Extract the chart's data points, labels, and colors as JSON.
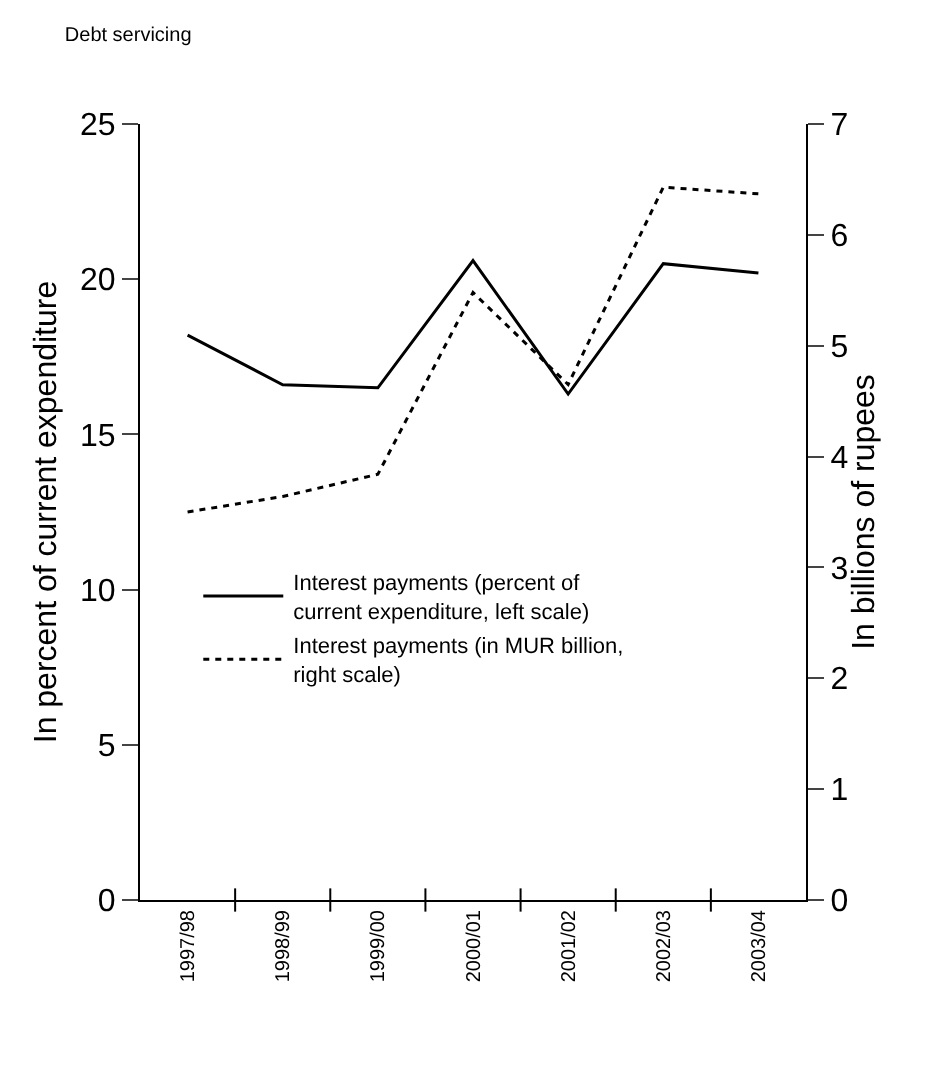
{
  "chart_data": {
    "type": "line",
    "title": "Debt servicing",
    "ylabel": "In percent of current expenditure",
    "y2label": "In billions of rupees",
    "categories": [
      "1997/98",
      "1998/99",
      "1999/00",
      "2000/01",
      "2001/02",
      "2002/03",
      "2003/04"
    ],
    "series": [
      {
        "name": "Interest payments (percent of current expenditure, left scale)",
        "color": "#000000",
        "line_style": "solid",
        "values": [
          18.2,
          16.6,
          16.5,
          20.6,
          16.3,
          20.5,
          20.2
        ]
      },
      {
        "name": "Interest payments (in MUR billion, right scale)",
        "color": "#000000",
        "line_style": "dotted",
        "axis": "y2",
        "values": [
          3.5,
          3.64,
          3.84,
          5.48,
          4.65,
          6.43,
          6.37
        ]
      }
    ],
    "ylim": [
      0,
      25
    ],
    "yticks": [
      0,
      5,
      10,
      15,
      20,
      25
    ],
    "y2lim": [
      0,
      7
    ],
    "y2ticks": [
      0,
      1,
      2,
      3,
      4,
      5,
      6,
      7
    ],
    "grid": false,
    "legend": "left",
    "marker": "none"
  }
}
